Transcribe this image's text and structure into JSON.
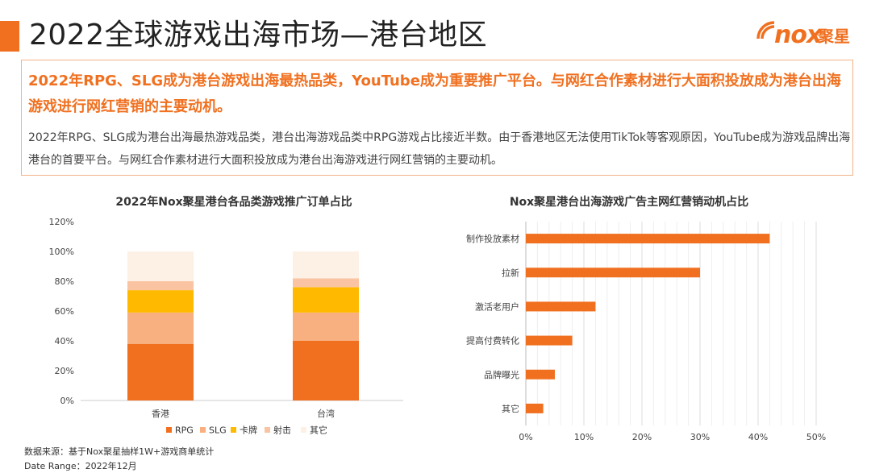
{
  "header": {
    "title": "2022全球游戏出海市场—港台地区",
    "brand_word": "nox",
    "brand_cn": "聚星"
  },
  "summary": {
    "headline": "2022年RPG、SLG成为港台游戏出海最热品类，YouTube成为重要推广平台。与网红合作素材进行大面积投放成为港台出海游戏进行网红营销的主要动机。",
    "body": "2022年RPG、SLG成为港台出海最热游戏品类，港台出海游戏品类中RPG游戏占比接近半数。由于香港地区无法使用TikTok等客观原因，YouTube成为游戏品牌出海港台的首要平台。与网红合作素材进行大面积投放成为港台出海游戏进行网红营销的主要动机。"
  },
  "colors": {
    "accent": "#f07020",
    "rpg": "#f07020",
    "slg": "#f8b080",
    "card": "#ffba00",
    "shooter": "#fac4a2",
    "other": "#fdf1e6"
  },
  "chart_data": [
    {
      "type": "bar",
      "stacked": true,
      "title": "2022年Nox聚星港台各品类游戏推广订单占比",
      "categories": [
        "香港",
        "台湾"
      ],
      "series": [
        {
          "name": "RPG",
          "values": [
            38,
            40
          ]
        },
        {
          "name": "SLG",
          "values": [
            21,
            19
          ]
        },
        {
          "name": "卡牌",
          "values": [
            15,
            17
          ]
        },
        {
          "name": "射击",
          "values": [
            6,
            6
          ]
        },
        {
          "name": "其它",
          "values": [
            20,
            18
          ]
        }
      ],
      "ylim": [
        0,
        120
      ],
      "yticks": [
        "0%",
        "20%",
        "40%",
        "60%",
        "80%",
        "100%",
        "120%"
      ],
      "legend": "bottom"
    },
    {
      "type": "bar",
      "orientation": "horizontal",
      "title": "Nox聚星港台出海游戏广告主网红营销动机占比",
      "categories": [
        "制作投放素材",
        "拉新",
        "激活老用户",
        "提高付费转化",
        "品牌曝光",
        "其它"
      ],
      "values": [
        42,
        30,
        12,
        8,
        5,
        3
      ],
      "xlim": [
        0,
        50
      ],
      "xticks": [
        "0%",
        "10%",
        "20%",
        "30%",
        "40%",
        "50%"
      ],
      "grid": true
    }
  ],
  "footnotes": {
    "source": "数据来源：基于Nox聚星抽样1W+游戏商单统计",
    "date_range": "Date Range：2022年12月"
  }
}
